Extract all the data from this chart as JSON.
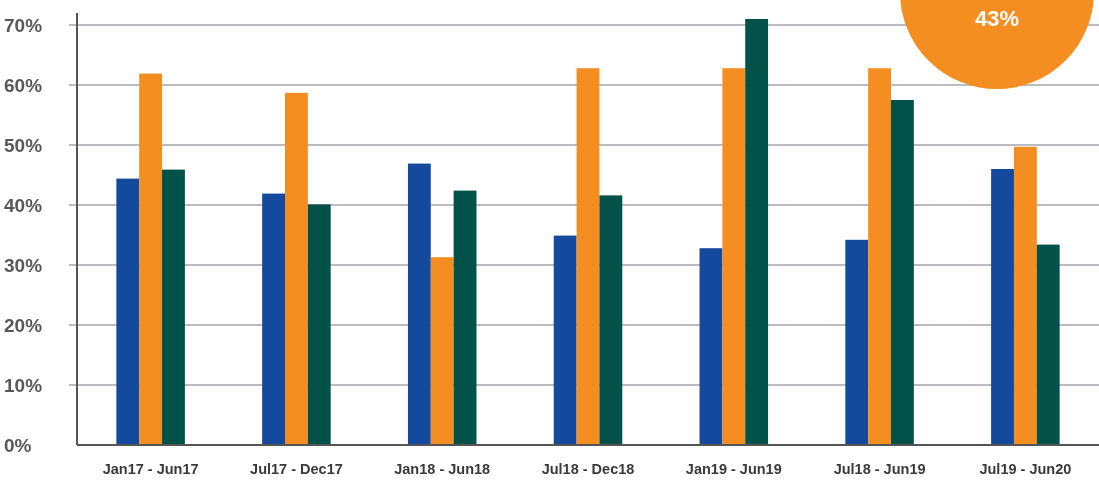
{
  "chart_data": {
    "type": "bar",
    "categories": [
      "Jan17 - Jun17",
      "Jul17 - Dec17",
      "Jan18 - Jun18",
      "Jul18 - Dec18",
      "Jan19 - Jun19",
      "Jul18 - Jun19",
      "Jul19 - Jun20"
    ],
    "series": [
      {
        "color": "#134a9e",
        "values": [
          44.4,
          41.9,
          46.9,
          34.9,
          32.8,
          34.2,
          46.0
        ]
      },
      {
        "color": "#f58e20",
        "values": [
          61.9,
          58.7,
          31.3,
          62.8,
          62.8,
          62.8,
          49.7
        ]
      },
      {
        "color": "#02524a",
        "values": [
          45.9,
          40.1,
          42.4,
          41.6,
          71.0,
          57.5,
          33.4
        ]
      }
    ],
    "ylim": [
      0,
      72
    ],
    "yticks": [
      {
        "value": 0,
        "label": "0%"
      },
      {
        "value": 10,
        "label": "10%"
      },
      {
        "value": 20,
        "label": "20%"
      },
      {
        "value": 30,
        "label": "30%"
      },
      {
        "value": 40,
        "label": "40%"
      },
      {
        "value": 50,
        "label": "50%"
      },
      {
        "value": 60,
        "label": "60%"
      },
      {
        "value": 70,
        "label": "70%"
      }
    ],
    "grid": "y",
    "annotations": [
      "43%"
    ]
  }
}
